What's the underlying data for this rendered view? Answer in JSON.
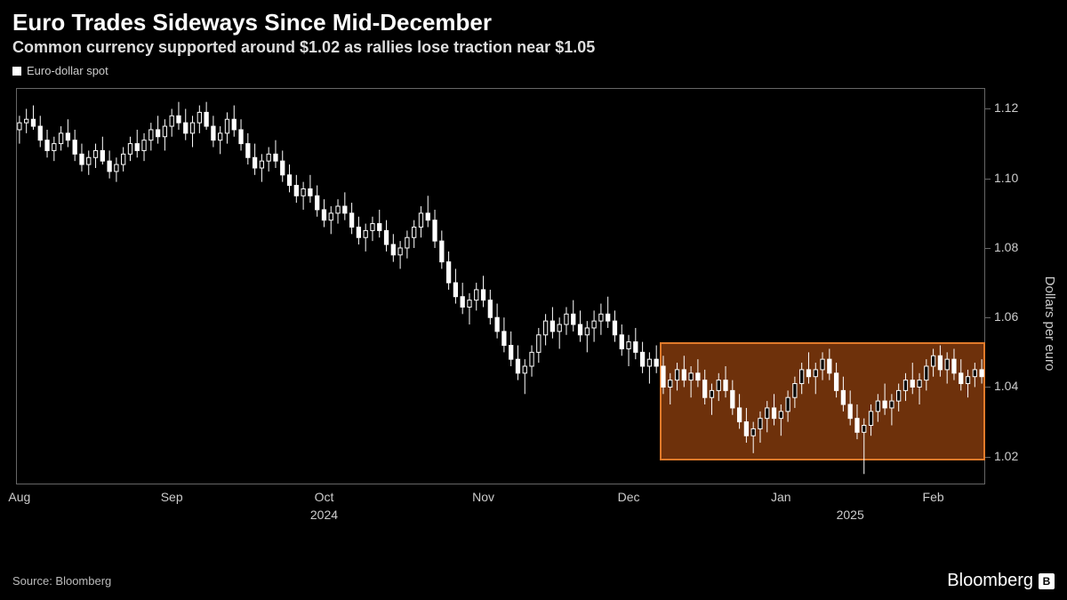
{
  "title": "Euro Trades Sideways Since Mid-December",
  "subtitle": "Common currency supported around $1.02 as rallies lose traction near $1.05",
  "legend": {
    "series_name": "Euro-dollar spot"
  },
  "source_text": "Source: Bloomberg",
  "brand_text": "Bloomberg",
  "chart": {
    "type": "candlestick",
    "background_color": "#000000",
    "candle_up_fill": "#000000",
    "candle_down_fill": "#ffffff",
    "candle_border": "#ffffff",
    "wick_color": "#ffffff",
    "grid_color": "#666666",
    "axis_text_color": "#cccccc",
    "ylabel": "Dollars per euro",
    "ylim": [
      1.012,
      1.126
    ],
    "yticks": [
      1.02,
      1.04,
      1.06,
      1.08,
      1.1,
      1.12
    ],
    "x_count": 140,
    "x_tick_labels": [
      {
        "i": 0,
        "label": "Aug"
      },
      {
        "i": 22,
        "label": "Sep"
      },
      {
        "i": 44,
        "label": "Oct"
      },
      {
        "i": 67,
        "label": "Nov"
      },
      {
        "i": 88,
        "label": "Dec"
      },
      {
        "i": 110,
        "label": "Jan"
      },
      {
        "i": 132,
        "label": "Feb"
      }
    ],
    "x_year_labels": [
      {
        "i": 44,
        "label": "2024"
      },
      {
        "i": 120,
        "label": "2025"
      }
    ],
    "highlight": {
      "start_i": 93,
      "end_i": 140,
      "y_low": 1.019,
      "y_high": 1.053,
      "fill": "rgba(200,90,20,0.55)",
      "border": "#e07a2a"
    },
    "candles": [
      {
        "o": 1.114,
        "h": 1.118,
        "l": 1.11,
        "c": 1.116
      },
      {
        "o": 1.116,
        "h": 1.12,
        "l": 1.113,
        "c": 1.117
      },
      {
        "o": 1.117,
        "h": 1.121,
        "l": 1.114,
        "c": 1.115
      },
      {
        "o": 1.115,
        "h": 1.118,
        "l": 1.109,
        "c": 1.111
      },
      {
        "o": 1.111,
        "h": 1.114,
        "l": 1.106,
        "c": 1.108
      },
      {
        "o": 1.108,
        "h": 1.112,
        "l": 1.105,
        "c": 1.11
      },
      {
        "o": 1.11,
        "h": 1.115,
        "l": 1.108,
        "c": 1.113
      },
      {
        "o": 1.113,
        "h": 1.117,
        "l": 1.109,
        "c": 1.111
      },
      {
        "o": 1.111,
        "h": 1.114,
        "l": 1.105,
        "c": 1.107
      },
      {
        "o": 1.107,
        "h": 1.11,
        "l": 1.102,
        "c": 1.104
      },
      {
        "o": 1.104,
        "h": 1.108,
        "l": 1.101,
        "c": 1.106
      },
      {
        "o": 1.106,
        "h": 1.11,
        "l": 1.103,
        "c": 1.108
      },
      {
        "o": 1.108,
        "h": 1.112,
        "l": 1.104,
        "c": 1.105
      },
      {
        "o": 1.105,
        "h": 1.108,
        "l": 1.1,
        "c": 1.102
      },
      {
        "o": 1.102,
        "h": 1.106,
        "l": 1.099,
        "c": 1.104
      },
      {
        "o": 1.104,
        "h": 1.109,
        "l": 1.102,
        "c": 1.107
      },
      {
        "o": 1.107,
        "h": 1.112,
        "l": 1.105,
        "c": 1.11
      },
      {
        "o": 1.11,
        "h": 1.114,
        "l": 1.106,
        "c": 1.108
      },
      {
        "o": 1.108,
        "h": 1.113,
        "l": 1.105,
        "c": 1.111
      },
      {
        "o": 1.111,
        "h": 1.116,
        "l": 1.108,
        "c": 1.114
      },
      {
        "o": 1.114,
        "h": 1.118,
        "l": 1.11,
        "c": 1.112
      },
      {
        "o": 1.112,
        "h": 1.117,
        "l": 1.108,
        "c": 1.115
      },
      {
        "o": 1.115,
        "h": 1.12,
        "l": 1.112,
        "c": 1.118
      },
      {
        "o": 1.118,
        "h": 1.122,
        "l": 1.114,
        "c": 1.116
      },
      {
        "o": 1.116,
        "h": 1.12,
        "l": 1.111,
        "c": 1.113
      },
      {
        "o": 1.113,
        "h": 1.118,
        "l": 1.109,
        "c": 1.116
      },
      {
        "o": 1.116,
        "h": 1.121,
        "l": 1.113,
        "c": 1.119
      },
      {
        "o": 1.119,
        "h": 1.122,
        "l": 1.114,
        "c": 1.115
      },
      {
        "o": 1.115,
        "h": 1.118,
        "l": 1.109,
        "c": 1.111
      },
      {
        "o": 1.111,
        "h": 1.115,
        "l": 1.107,
        "c": 1.113
      },
      {
        "o": 1.113,
        "h": 1.119,
        "l": 1.11,
        "c": 1.117
      },
      {
        "o": 1.117,
        "h": 1.121,
        "l": 1.112,
        "c": 1.114
      },
      {
        "o": 1.114,
        "h": 1.117,
        "l": 1.108,
        "c": 1.11
      },
      {
        "o": 1.11,
        "h": 1.113,
        "l": 1.104,
        "c": 1.106
      },
      {
        "o": 1.106,
        "h": 1.11,
        "l": 1.101,
        "c": 1.103
      },
      {
        "o": 1.103,
        "h": 1.107,
        "l": 1.099,
        "c": 1.105
      },
      {
        "o": 1.105,
        "h": 1.109,
        "l": 1.102,
        "c": 1.107
      },
      {
        "o": 1.107,
        "h": 1.111,
        "l": 1.103,
        "c": 1.105
      },
      {
        "o": 1.105,
        "h": 1.108,
        "l": 1.099,
        "c": 1.101
      },
      {
        "o": 1.101,
        "h": 1.104,
        "l": 1.096,
        "c": 1.098
      },
      {
        "o": 1.098,
        "h": 1.101,
        "l": 1.093,
        "c": 1.095
      },
      {
        "o": 1.095,
        "h": 1.099,
        "l": 1.091,
        "c": 1.097
      },
      {
        "o": 1.097,
        "h": 1.101,
        "l": 1.093,
        "c": 1.095
      },
      {
        "o": 1.095,
        "h": 1.098,
        "l": 1.089,
        "c": 1.091
      },
      {
        "o": 1.091,
        "h": 1.094,
        "l": 1.086,
        "c": 1.088
      },
      {
        "o": 1.088,
        "h": 1.092,
        "l": 1.084,
        "c": 1.09
      },
      {
        "o": 1.09,
        "h": 1.094,
        "l": 1.087,
        "c": 1.092
      },
      {
        "o": 1.092,
        "h": 1.096,
        "l": 1.088,
        "c": 1.09
      },
      {
        "o": 1.09,
        "h": 1.093,
        "l": 1.084,
        "c": 1.086
      },
      {
        "o": 1.086,
        "h": 1.089,
        "l": 1.081,
        "c": 1.083
      },
      {
        "o": 1.083,
        "h": 1.087,
        "l": 1.079,
        "c": 1.085
      },
      {
        "o": 1.085,
        "h": 1.089,
        "l": 1.082,
        "c": 1.087
      },
      {
        "o": 1.087,
        "h": 1.091,
        "l": 1.083,
        "c": 1.085
      },
      {
        "o": 1.085,
        "h": 1.088,
        "l": 1.079,
        "c": 1.081
      },
      {
        "o": 1.081,
        "h": 1.084,
        "l": 1.076,
        "c": 1.078
      },
      {
        "o": 1.078,
        "h": 1.082,
        "l": 1.074,
        "c": 1.08
      },
      {
        "o": 1.08,
        "h": 1.085,
        "l": 1.077,
        "c": 1.083
      },
      {
        "o": 1.083,
        "h": 1.088,
        "l": 1.08,
        "c": 1.086
      },
      {
        "o": 1.086,
        "h": 1.092,
        "l": 1.083,
        "c": 1.09
      },
      {
        "o": 1.09,
        "h": 1.095,
        "l": 1.086,
        "c": 1.088
      },
      {
        "o": 1.088,
        "h": 1.091,
        "l": 1.08,
        "c": 1.082
      },
      {
        "o": 1.082,
        "h": 1.085,
        "l": 1.074,
        "c": 1.076
      },
      {
        "o": 1.076,
        "h": 1.079,
        "l": 1.068,
        "c": 1.07
      },
      {
        "o": 1.07,
        "h": 1.074,
        "l": 1.064,
        "c": 1.066
      },
      {
        "o": 1.066,
        "h": 1.07,
        "l": 1.061,
        "c": 1.063
      },
      {
        "o": 1.063,
        "h": 1.067,
        "l": 1.058,
        "c": 1.065
      },
      {
        "o": 1.065,
        "h": 1.07,
        "l": 1.062,
        "c": 1.068
      },
      {
        "o": 1.068,
        "h": 1.072,
        "l": 1.063,
        "c": 1.065
      },
      {
        "o": 1.065,
        "h": 1.068,
        "l": 1.058,
        "c": 1.06
      },
      {
        "o": 1.06,
        "h": 1.064,
        "l": 1.054,
        "c": 1.056
      },
      {
        "o": 1.056,
        "h": 1.06,
        "l": 1.05,
        "c": 1.052
      },
      {
        "o": 1.052,
        "h": 1.056,
        "l": 1.046,
        "c": 1.048
      },
      {
        "o": 1.048,
        "h": 1.052,
        "l": 1.042,
        "c": 1.044
      },
      {
        "o": 1.044,
        "h": 1.048,
        "l": 1.038,
        "c": 1.046
      },
      {
        "o": 1.046,
        "h": 1.052,
        "l": 1.043,
        "c": 1.05
      },
      {
        "o": 1.05,
        "h": 1.057,
        "l": 1.047,
        "c": 1.055
      },
      {
        "o": 1.055,
        "h": 1.061,
        "l": 1.052,
        "c": 1.059
      },
      {
        "o": 1.059,
        "h": 1.063,
        "l": 1.054,
        "c": 1.056
      },
      {
        "o": 1.056,
        "h": 1.06,
        "l": 1.051,
        "c": 1.058
      },
      {
        "o": 1.058,
        "h": 1.063,
        "l": 1.055,
        "c": 1.061
      },
      {
        "o": 1.061,
        "h": 1.065,
        "l": 1.056,
        "c": 1.058
      },
      {
        "o": 1.058,
        "h": 1.062,
        "l": 1.053,
        "c": 1.055
      },
      {
        "o": 1.055,
        "h": 1.059,
        "l": 1.05,
        "c": 1.057
      },
      {
        "o": 1.057,
        "h": 1.062,
        "l": 1.053,
        "c": 1.059
      },
      {
        "o": 1.059,
        "h": 1.064,
        "l": 1.055,
        "c": 1.061
      },
      {
        "o": 1.061,
        "h": 1.066,
        "l": 1.057,
        "c": 1.059
      },
      {
        "o": 1.059,
        "h": 1.062,
        "l": 1.053,
        "c": 1.055
      },
      {
        "o": 1.055,
        "h": 1.058,
        "l": 1.049,
        "c": 1.051
      },
      {
        "o": 1.051,
        "h": 1.055,
        "l": 1.046,
        "c": 1.053
      },
      {
        "o": 1.053,
        "h": 1.057,
        "l": 1.048,
        "c": 1.05
      },
      {
        "o": 1.05,
        "h": 1.053,
        "l": 1.044,
        "c": 1.046
      },
      {
        "o": 1.046,
        "h": 1.05,
        "l": 1.041,
        "c": 1.048
      },
      {
        "o": 1.048,
        "h": 1.052,
        "l": 1.044,
        "c": 1.046
      },
      {
        "o": 1.046,
        "h": 1.049,
        "l": 1.038,
        "c": 1.04
      },
      {
        "o": 1.04,
        "h": 1.044,
        "l": 1.035,
        "c": 1.042
      },
      {
        "o": 1.042,
        "h": 1.047,
        "l": 1.039,
        "c": 1.045
      },
      {
        "o": 1.045,
        "h": 1.049,
        "l": 1.04,
        "c": 1.042
      },
      {
        "o": 1.042,
        "h": 1.046,
        "l": 1.037,
        "c": 1.044
      },
      {
        "o": 1.044,
        "h": 1.048,
        "l": 1.04,
        "c": 1.042
      },
      {
        "o": 1.042,
        "h": 1.045,
        "l": 1.035,
        "c": 1.037
      },
      {
        "o": 1.037,
        "h": 1.041,
        "l": 1.032,
        "c": 1.039
      },
      {
        "o": 1.039,
        "h": 1.044,
        "l": 1.036,
        "c": 1.042
      },
      {
        "o": 1.042,
        "h": 1.046,
        "l": 1.037,
        "c": 1.039
      },
      {
        "o": 1.039,
        "h": 1.042,
        "l": 1.032,
        "c": 1.034
      },
      {
        "o": 1.034,
        "h": 1.038,
        "l": 1.028,
        "c": 1.03
      },
      {
        "o": 1.03,
        "h": 1.034,
        "l": 1.024,
        "c": 1.026
      },
      {
        "o": 1.026,
        "h": 1.03,
        "l": 1.021,
        "c": 1.028
      },
      {
        "o": 1.028,
        "h": 1.033,
        "l": 1.024,
        "c": 1.031
      },
      {
        "o": 1.031,
        "h": 1.036,
        "l": 1.027,
        "c": 1.034
      },
      {
        "o": 1.034,
        "h": 1.038,
        "l": 1.029,
        "c": 1.031
      },
      {
        "o": 1.031,
        "h": 1.035,
        "l": 1.026,
        "c": 1.033
      },
      {
        "o": 1.033,
        "h": 1.039,
        "l": 1.03,
        "c": 1.037
      },
      {
        "o": 1.037,
        "h": 1.043,
        "l": 1.034,
        "c": 1.041
      },
      {
        "o": 1.041,
        "h": 1.047,
        "l": 1.038,
        "c": 1.045
      },
      {
        "o": 1.045,
        "h": 1.05,
        "l": 1.041,
        "c": 1.043
      },
      {
        "o": 1.043,
        "h": 1.047,
        "l": 1.038,
        "c": 1.045
      },
      {
        "o": 1.045,
        "h": 1.05,
        "l": 1.042,
        "c": 1.048
      },
      {
        "o": 1.048,
        "h": 1.051,
        "l": 1.042,
        "c": 1.044
      },
      {
        "o": 1.044,
        "h": 1.047,
        "l": 1.037,
        "c": 1.039
      },
      {
        "o": 1.039,
        "h": 1.043,
        "l": 1.033,
        "c": 1.035
      },
      {
        "o": 1.035,
        "h": 1.039,
        "l": 1.029,
        "c": 1.031
      },
      {
        "o": 1.031,
        "h": 1.035,
        "l": 1.025,
        "c": 1.027
      },
      {
        "o": 1.027,
        "h": 1.031,
        "l": 1.015,
        "c": 1.029
      },
      {
        "o": 1.029,
        "h": 1.035,
        "l": 1.026,
        "c": 1.033
      },
      {
        "o": 1.033,
        "h": 1.038,
        "l": 1.03,
        "c": 1.036
      },
      {
        "o": 1.036,
        "h": 1.041,
        "l": 1.032,
        "c": 1.034
      },
      {
        "o": 1.034,
        "h": 1.038,
        "l": 1.029,
        "c": 1.036
      },
      {
        "o": 1.036,
        "h": 1.041,
        "l": 1.033,
        "c": 1.039
      },
      {
        "o": 1.039,
        "h": 1.044,
        "l": 1.036,
        "c": 1.042
      },
      {
        "o": 1.042,
        "h": 1.047,
        "l": 1.038,
        "c": 1.04
      },
      {
        "o": 1.04,
        "h": 1.044,
        "l": 1.035,
        "c": 1.042
      },
      {
        "o": 1.042,
        "h": 1.048,
        "l": 1.039,
        "c": 1.046
      },
      {
        "o": 1.046,
        "h": 1.051,
        "l": 1.043,
        "c": 1.049
      },
      {
        "o": 1.049,
        "h": 1.052,
        "l": 1.043,
        "c": 1.045
      },
      {
        "o": 1.045,
        "h": 1.05,
        "l": 1.041,
        "c": 1.048
      },
      {
        "o": 1.048,
        "h": 1.051,
        "l": 1.042,
        "c": 1.044
      },
      {
        "o": 1.044,
        "h": 1.048,
        "l": 1.039,
        "c": 1.041
      },
      {
        "o": 1.041,
        "h": 1.045,
        "l": 1.037,
        "c": 1.043
      },
      {
        "o": 1.043,
        "h": 1.047,
        "l": 1.04,
        "c": 1.045
      },
      {
        "o": 1.045,
        "h": 1.048,
        "l": 1.041,
        "c": 1.043
      }
    ]
  }
}
